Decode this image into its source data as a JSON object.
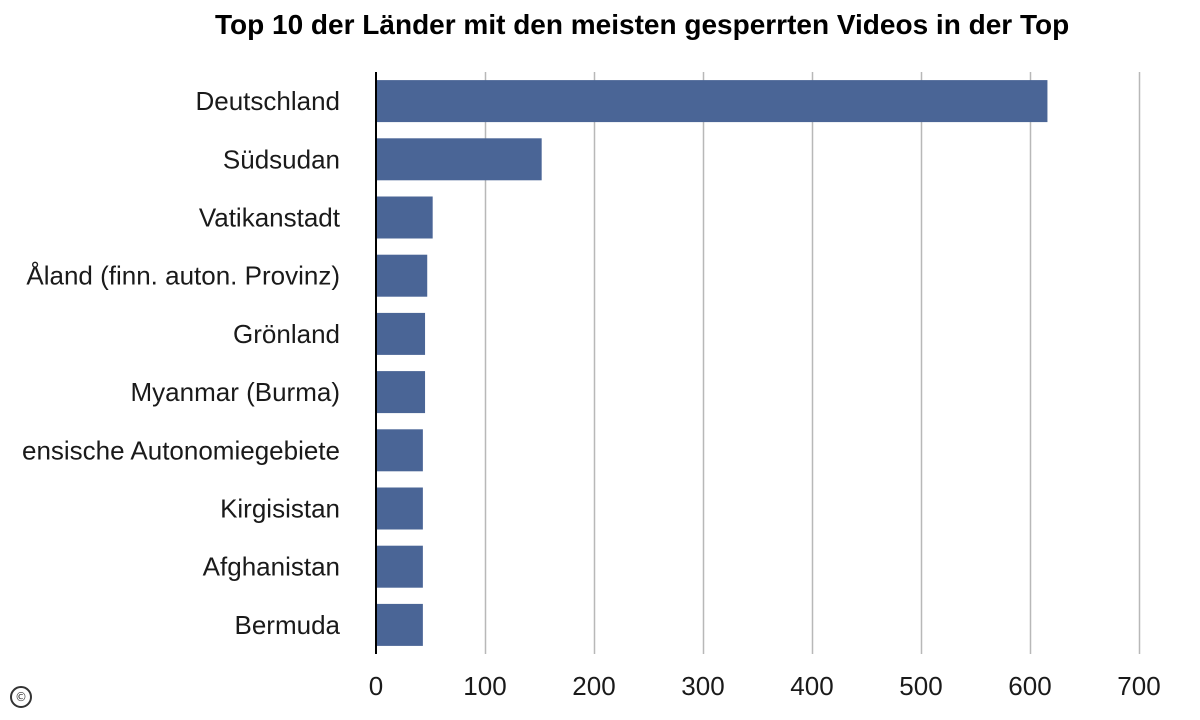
{
  "chart_data": {
    "type": "bar",
    "orientation": "horizontal",
    "title": "Top 10 der Länder mit den meisten gesperrten Videos in der Top",
    "xlabel": "",
    "ylabel": "",
    "categories": [
      "Deutschland",
      "Südsudan",
      "Vatikanstadt",
      "Åland (finn. auton. Provinz)",
      "Grönland",
      "Myanmar (Burma)",
      "ensische Autonomiegebiete",
      "Kirgisistan",
      "Afghanistan",
      "Bermuda"
    ],
    "values": [
      616,
      152,
      52,
      47,
      45,
      45,
      43,
      43,
      43,
      43
    ],
    "xlim": [
      0,
      700
    ],
    "xticks": [
      0,
      100,
      200,
      300,
      400,
      500,
      600,
      700
    ],
    "grid": true,
    "legend": "none",
    "bar_color": "#4a6596",
    "gridline_color": "#b8b8b8"
  },
  "copyright_symbol": "©"
}
